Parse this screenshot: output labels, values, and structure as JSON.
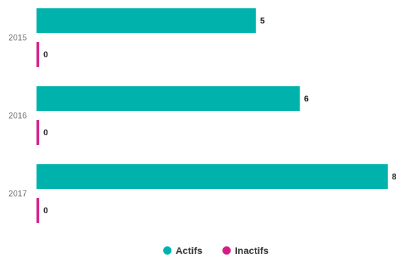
{
  "chart_data": {
    "type": "bar",
    "orientation": "horizontal",
    "categories": [
      "2015",
      "2016",
      "2017"
    ],
    "series": [
      {
        "name": "Actifs",
        "values": [
          5,
          6,
          8
        ]
      },
      {
        "name": "Inactifs",
        "values": [
          0,
          0,
          0
        ]
      }
    ],
    "xlim": [
      0,
      8
    ],
    "grid": false,
    "legend": "bottom-center",
    "data_labels": true
  },
  "colors": {
    "Actifs": "#00b2ac",
    "Inactifs": "#d61b84"
  }
}
